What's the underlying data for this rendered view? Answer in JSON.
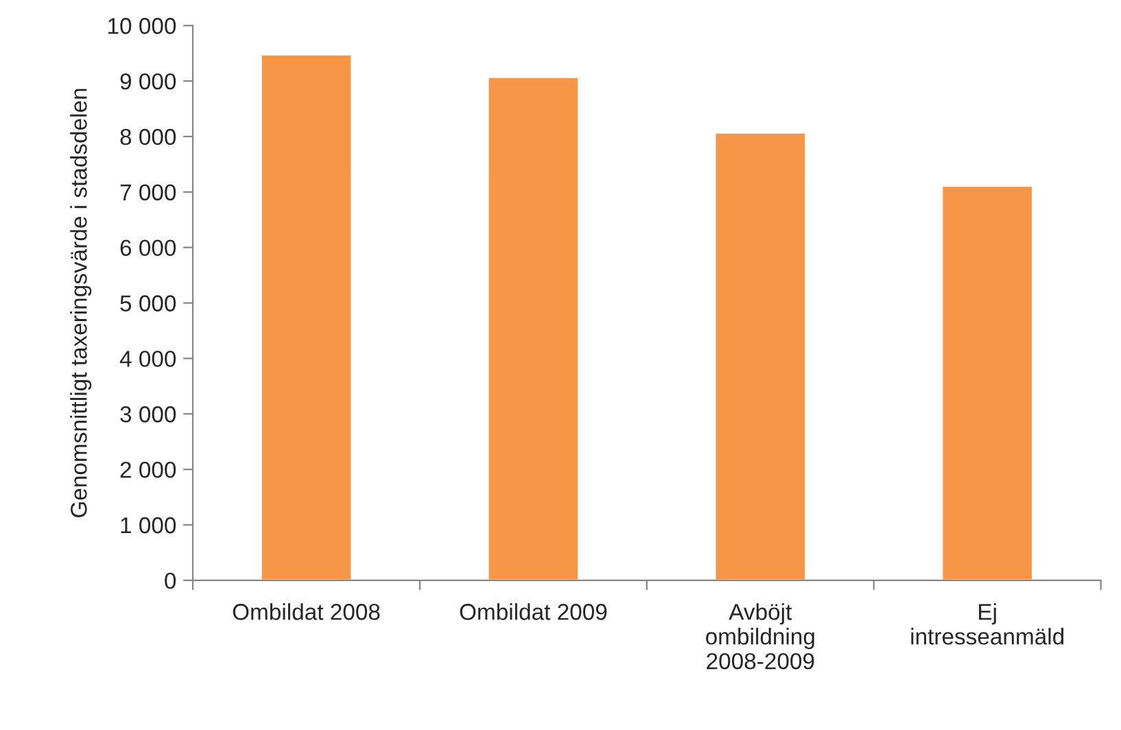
{
  "chart_data": {
    "type": "bar",
    "ylabel": "Genomsnittligt taxeringsvärde i stadsdelen",
    "categories": [
      "Ombildat 2008",
      "Ombildat 2009",
      "Avböjt\nombildning\n2008-2009",
      "Ej\nintresseanmäld"
    ],
    "values": [
      9480,
      9070,
      8070,
      7110
    ],
    "color": "#f79646",
    "ylim": [
      0,
      10000
    ],
    "yticks": [
      0,
      {
        "value": 1000,
        "label": "1 000"
      },
      {
        "value": 2000,
        "label": "2 000"
      },
      {
        "value": 3000,
        "label": "3 000"
      },
      {
        "value": 4000,
        "label": "4 000"
      },
      {
        "value": 5000,
        "label": "5 000"
      },
      {
        "value": 6000,
        "label": "6 000"
      },
      {
        "value": 7000,
        "label": "7 000"
      },
      {
        "value": 8000,
        "label": "8 000"
      },
      {
        "value": 9000,
        "label": "9 000"
      },
      {
        "value": 10000,
        "label": "10 000"
      }
    ],
    "grid": false
  }
}
